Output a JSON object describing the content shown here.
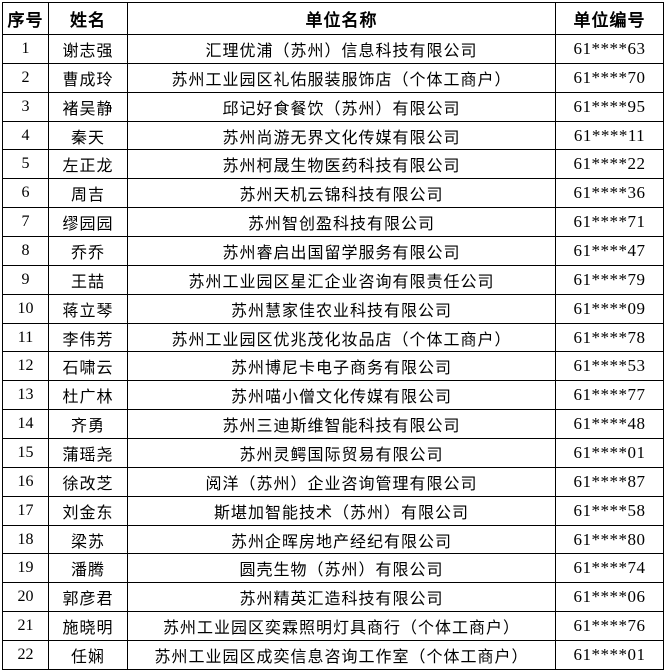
{
  "colors": {
    "background": "#ffffff",
    "border": "#000000",
    "text": "#000000"
  },
  "table": {
    "headers": [
      "序号",
      "姓名",
      "单位名称",
      "单位编号"
    ],
    "rows": [
      [
        "1",
        "谢志强",
        "汇理优浦（苏州）信息科技有限公司",
        "61****63"
      ],
      [
        "2",
        "曹成玲",
        "苏州工业园区礼佑服装服饰店（个体工商户）",
        "61****70"
      ],
      [
        "3",
        "褚吴静",
        "邱记好食餐饮（苏州）有限公司",
        "61****95"
      ],
      [
        "4",
        "秦天",
        "苏州尚游无界文化传媒有限公司",
        "61****11"
      ],
      [
        "5",
        "左正龙",
        "苏州柯晟生物医药科技有限公司",
        "61****22"
      ],
      [
        "6",
        "周吉",
        "苏州天机云锦科技有限公司",
        "61****36"
      ],
      [
        "7",
        "缪园园",
        "苏州智创盈科技有限公司",
        "61****71"
      ],
      [
        "8",
        "乔乔",
        "苏州睿启出国留学服务有限公司",
        "61****47"
      ],
      [
        "9",
        "王喆",
        "苏州工业园区星汇企业咨询有限责任公司",
        "61****79"
      ],
      [
        "10",
        "蒋立琴",
        "苏州慧家佳农业科技有限公司",
        "61****09"
      ],
      [
        "11",
        "李伟芳",
        "苏州工业园区优兆茂化妆品店（个体工商户）",
        "61****78"
      ],
      [
        "12",
        "石啸云",
        "苏州博尼卡电子商务有限公司",
        "61****53"
      ],
      [
        "13",
        "杜广林",
        "苏州喵小僧文化传媒有限公司",
        "61****77"
      ],
      [
        "14",
        "齐勇",
        "苏州三迪斯维智能科技有限公司",
        "61****48"
      ],
      [
        "15",
        "蒲瑶尧",
        "苏州灵鳄国际贸易有限公司",
        "61****01"
      ],
      [
        "16",
        "徐改芝",
        "阅洋（苏州）企业咨询管理有限公司",
        "61****87"
      ],
      [
        "17",
        "刘金东",
        "斯堪加智能技术（苏州）有限公司",
        "61****58"
      ],
      [
        "18",
        "梁苏",
        "苏州企晖房地产经纪有限公司",
        "61****80"
      ],
      [
        "19",
        "潘腾",
        "圆壳生物（苏州）有限公司",
        "61****74"
      ],
      [
        "20",
        "郭彦君",
        "苏州精英汇造科技有限公司",
        "61****06"
      ],
      [
        "21",
        "施晓明",
        "苏州工业园区奕霖照明灯具商行（个体工商户）",
        "61****76"
      ],
      [
        "22",
        "任娴",
        "苏州工业园区成奕信息咨询工作室（个体工商户）",
        "61****01"
      ]
    ]
  }
}
